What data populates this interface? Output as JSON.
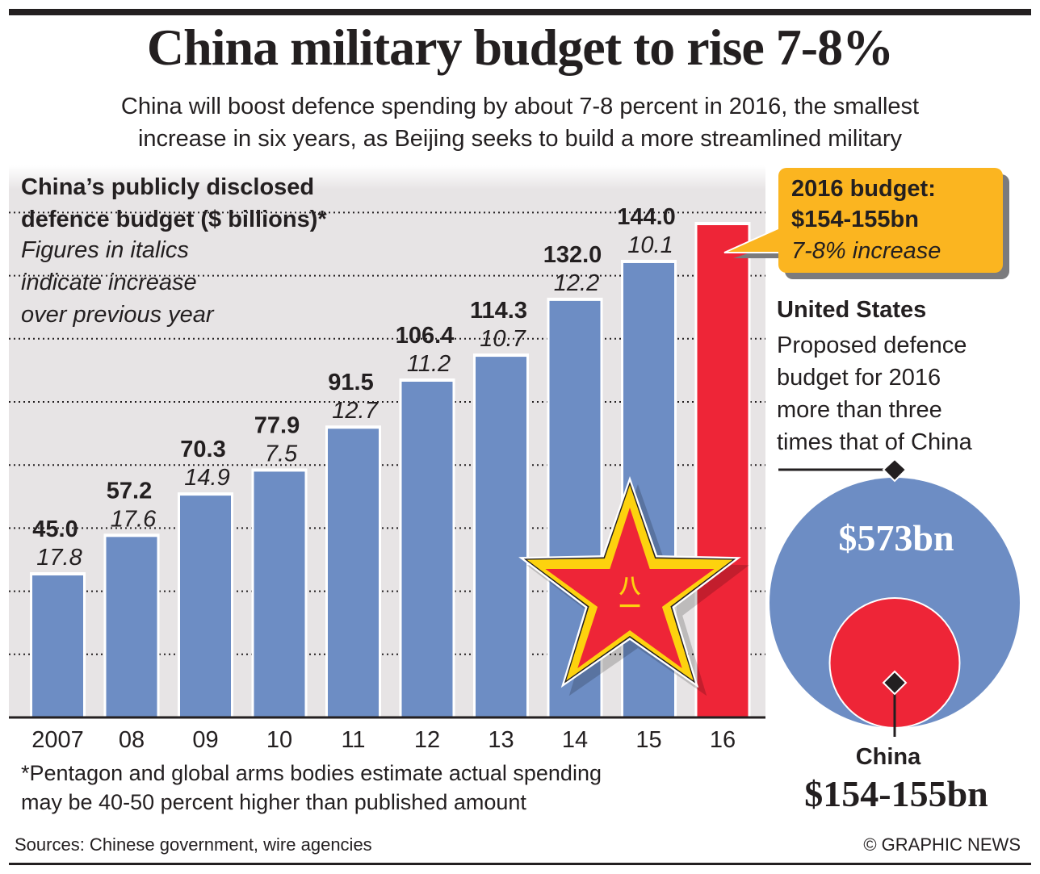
{
  "header": {
    "title": "China military budget to rise 7-8%",
    "subtitle_line1": "China will boost defence spending by about 7-8 percent in 2016, the smallest",
    "subtitle_line2": "increase in six years, as Beijing seeks to build a more streamlined military"
  },
  "chart_panel": {
    "heading_line1": "China’s publicly disclosed",
    "heading_line2": "defence budget ($ billions)*",
    "note_line1": "Figures in italics",
    "note_line2": "indicate increase",
    "note_line3": "over previous year",
    "footnote_line1": "*Pentagon and global arms bodies estimate actual spending",
    "footnote_line2": "may be 40-50 percent higher than published amount",
    "star_emblem_glyph": "八一"
  },
  "callout": {
    "line1": "2016 budget:",
    "line2": "$154-155bn",
    "line3": "7-8% increase"
  },
  "comparison": {
    "us_title": "United States",
    "us_desc_lines": [
      "Proposed defence",
      "budget for 2016",
      "more than three",
      "times that of China"
    ],
    "us_value": "$573bn",
    "china_label": "China",
    "china_value": "$154-155bn"
  },
  "footer": {
    "sources": "Sources: Chinese government, wire agencies",
    "credit": "© GRAPHIC NEWS"
  },
  "colors": {
    "bar_blue": "#6d8dc4",
    "bar_red": "#ee2537",
    "callout_orange": "#fbb520",
    "panel_bg": "#e7e4e5",
    "star_yellow": "#fdd20e",
    "text": "#231f20"
  },
  "chart_data": {
    "type": "bar",
    "title": "China’s publicly disclosed defence budget ($ billions)*",
    "xlabel": "",
    "ylabel": "$ billions",
    "categories": [
      "2007",
      "08",
      "09",
      "10",
      "11",
      "12",
      "13",
      "14",
      "15",
      "16"
    ],
    "values": [
      45.0,
      57.2,
      70.3,
      77.9,
      91.5,
      106.4,
      114.3,
      132.0,
      144.0,
      154.5
    ],
    "value_labels": [
      "45.0",
      "57.2",
      "70.3",
      "77.9",
      "91.5",
      "106.4",
      "114.3",
      "132.0",
      "144.0",
      ""
    ],
    "increase_labels": [
      "17.8",
      "17.6",
      "14.9",
      "7.5",
      "12.7",
      "11.2",
      "10.7",
      "12.2",
      "10.1",
      ""
    ],
    "highlight_index": 9,
    "highlight_note": "2016 budget: $154-155bn, 7-8% increase",
    "ylim": [
      0,
      175
    ],
    "gridlines": [
      20,
      40,
      60,
      80,
      100,
      120,
      140,
      160
    ],
    "grid": true,
    "legend": "none",
    "comparison_circles": [
      {
        "name": "United States",
        "value": 573,
        "label": "$573bn"
      },
      {
        "name": "China",
        "value": 154.5,
        "label": "$154-155bn"
      }
    ]
  }
}
